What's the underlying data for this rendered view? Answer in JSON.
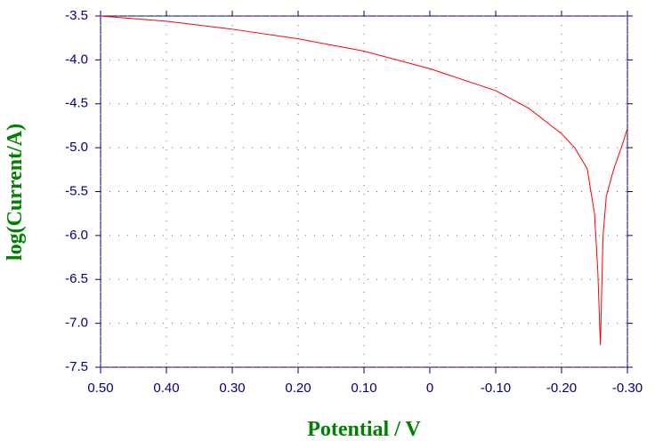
{
  "chart_data": {
    "type": "line",
    "x_label": "Potential / V",
    "y_label": "log(Current/A)",
    "x": [
      0.5,
      0.4,
      0.3,
      0.2,
      0.1,
      0.0,
      -0.1,
      -0.15,
      -0.2,
      -0.22,
      -0.239,
      -0.25,
      -0.255,
      -0.259,
      -0.263,
      -0.268,
      -0.279,
      -0.293,
      -0.3
    ],
    "values": [
      -3.5,
      -3.56,
      -3.65,
      -3.76,
      -3.9,
      -4.1,
      -4.35,
      -4.55,
      -4.84,
      -5.0,
      -5.24,
      -5.75,
      -6.4,
      -7.25,
      -6.0,
      -5.55,
      -5.25,
      -4.95,
      -4.78
    ],
    "color": "#ff0000",
    "xlim": [
      0.5,
      -0.3
    ],
    "ylim": [
      -7.5,
      -3.5
    ],
    "xticks": [
      {
        "value": 0.5,
        "label": "0.50"
      },
      {
        "value": 0.4,
        "label": "0.40"
      },
      {
        "value": 0.3,
        "label": "0.30"
      },
      {
        "value": 0.2,
        "label": "0.20"
      },
      {
        "value": 0.1,
        "label": "0.10"
      },
      0,
      {
        "value": -0.1,
        "label": "-0.10"
      },
      {
        "value": -0.2,
        "label": "-0.20"
      },
      {
        "value": -0.3,
        "label": "-0.30"
      }
    ],
    "yticks": [
      -3.5,
      {
        "value": -4.0,
        "label": "-4.0"
      },
      -4.5,
      {
        "value": -5.0,
        "label": "-5.0"
      },
      -5.5,
      {
        "value": -6.0,
        "label": "-6.0"
      },
      -6.5,
      {
        "value": -7.0,
        "label": "-7.0"
      },
      -7.5
    ],
    "grid": true
  }
}
